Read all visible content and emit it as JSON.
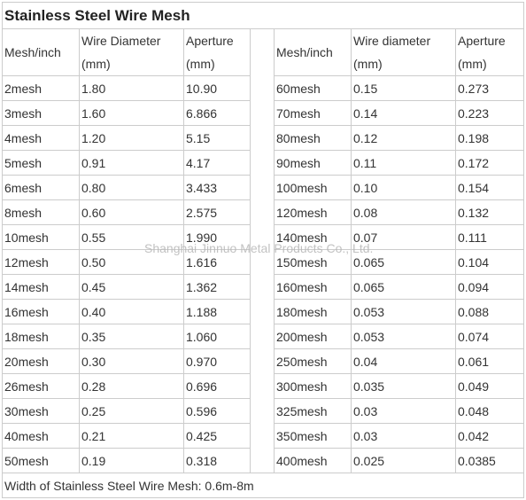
{
  "title": "Stainless Steel Wire Mesh",
  "headers": {
    "left": [
      "Mesh/inch",
      "Wire Diameter (mm)",
      "Aperture (mm)"
    ],
    "right": [
      "Mesh/inch",
      "Wire diameter (mm)",
      "Aperture (mm)"
    ]
  },
  "rows": [
    {
      "l": [
        "2mesh",
        "1.80",
        "10.90"
      ],
      "r": [
        "60mesh",
        "0.15",
        "0.273"
      ]
    },
    {
      "l": [
        "3mesh",
        "1.60",
        "6.866"
      ],
      "r": [
        "70mesh",
        "0.14",
        "0.223"
      ]
    },
    {
      "l": [
        "4mesh",
        "1.20",
        "5.15"
      ],
      "r": [
        "80mesh",
        "0.12",
        "0.198"
      ]
    },
    {
      "l": [
        "5mesh",
        "0.91",
        "4.17"
      ],
      "r": [
        "90mesh",
        "0.11",
        "0.172"
      ]
    },
    {
      "l": [
        "6mesh",
        "0.80",
        "3.433"
      ],
      "r": [
        "100mesh",
        "0.10",
        "0.154"
      ]
    },
    {
      "l": [
        "8mesh",
        "0.60",
        "2.575"
      ],
      "r": [
        "120mesh",
        "0.08",
        "0.132"
      ]
    },
    {
      "l": [
        "10mesh",
        "0.55",
        "1.990"
      ],
      "r": [
        "140mesh",
        "0.07",
        "0.111"
      ]
    },
    {
      "l": [
        "12mesh",
        "0.50",
        "1.616"
      ],
      "r": [
        "150mesh",
        "0.065",
        "0.104"
      ]
    },
    {
      "l": [
        "14mesh",
        "0.45",
        "1.362"
      ],
      "r": [
        "160mesh",
        "0.065",
        "0.094"
      ]
    },
    {
      "l": [
        "16mesh",
        "0.40",
        "1.188"
      ],
      "r": [
        "180mesh",
        "0.053",
        "0.088"
      ]
    },
    {
      "l": [
        "18mesh",
        "0.35",
        "1.060"
      ],
      "r": [
        "200mesh",
        "0.053",
        "0.074"
      ]
    },
    {
      "l": [
        "20mesh",
        "0.30",
        "0.970"
      ],
      "r": [
        "250mesh",
        "0.04",
        "0.061"
      ]
    },
    {
      "l": [
        "26mesh",
        "0.28",
        "0.696"
      ],
      "r": [
        "300mesh",
        "0.035",
        "0.049"
      ]
    },
    {
      "l": [
        "30mesh",
        "0.25",
        "0.596"
      ],
      "r": [
        "325mesh",
        "0.03",
        "0.048"
      ]
    },
    {
      "l": [
        "40mesh",
        "0.21",
        "0.425"
      ],
      "r": [
        "350mesh",
        "0.03",
        "0.042"
      ]
    },
    {
      "l": [
        "50mesh",
        "0.19",
        "0.318"
      ],
      "r": [
        "400mesh",
        "0.025",
        "0.0385"
      ]
    }
  ],
  "footer": "Width of Stainless Steel Wire Mesh: 0.6m-8m",
  "watermark": "Shanghai Jinnuo Metal Products Co., Ltd."
}
